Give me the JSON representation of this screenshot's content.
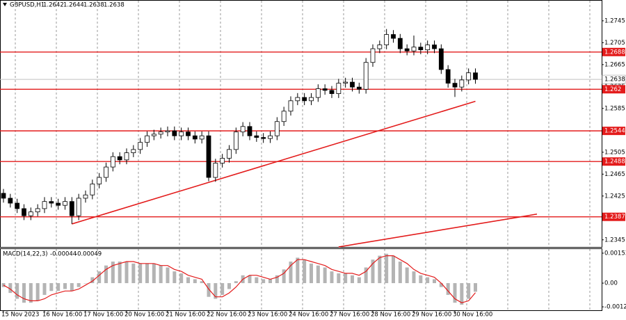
{
  "chart_data": [
    {
      "type": "candlestick",
      "symbol": "GBPUSD,H1",
      "header_ohlc": [
        1.2642,
        1.2644,
        1.2638,
        1.2638
      ],
      "categories": [
        "15 Nov 2023",
        null,
        null,
        null,
        null,
        null,
        "16 Nov 16:00",
        null,
        null,
        null,
        null,
        null,
        "17 Nov 16:00",
        null,
        null,
        null,
        null,
        null,
        "20 Nov 16:00",
        null,
        null,
        null,
        null,
        null,
        "21 Nov 16:00",
        null,
        null,
        null,
        null,
        null,
        "22 Nov 16:00",
        null,
        null,
        null,
        null,
        null,
        "23 Nov 16:00",
        null,
        null,
        null,
        null,
        null,
        "24 Nov 16:00",
        null,
        null,
        null,
        null,
        null,
        "27 Nov 16:00",
        null,
        null,
        null,
        null,
        null,
        "28 Nov 16:00",
        null,
        null,
        null,
        null,
        null,
        "29 Nov 16:00",
        null,
        null,
        null,
        null,
        null,
        "30 Nov 16:00",
        null,
        null,
        null
      ],
      "open": [
        1.243,
        1.2421,
        1.2412,
        1.2402,
        1.2389,
        1.2396,
        1.2402,
        1.2415,
        1.2412,
        1.2408,
        1.2415,
        1.2389,
        1.2421,
        1.2427,
        1.2447,
        1.2459,
        1.2478,
        1.2497,
        1.2491,
        1.2504,
        1.251,
        1.2523,
        1.2535,
        1.2538,
        1.2542,
        1.2544,
        1.2535,
        1.2542,
        1.2535,
        1.2529,
        1.2535,
        1.2459,
        1.2485,
        1.2494,
        1.251,
        1.2542,
        1.2552,
        1.2535,
        1.2532,
        1.253,
        1.2535,
        1.2561,
        1.258,
        1.2599,
        1.2605,
        1.2599,
        1.2605,
        1.2621,
        1.2618,
        1.2612,
        1.2631,
        1.2633,
        1.2624,
        1.262,
        1.2669,
        1.2694,
        1.2701,
        1.272,
        1.2713,
        1.2694,
        1.269,
        1.2697,
        1.2692,
        1.2701,
        1.2694,
        1.2656,
        1.2631,
        1.2624,
        1.2637,
        1.265
      ],
      "high": [
        1.2438,
        1.2429,
        1.242,
        1.241,
        1.2404,
        1.241,
        1.2423,
        1.2423,
        1.242,
        1.2423,
        1.2423,
        1.2429,
        1.2435,
        1.2455,
        1.2467,
        1.2486,
        1.2505,
        1.2505,
        1.2512,
        1.2518,
        1.2531,
        1.2543,
        1.2546,
        1.255,
        1.2552,
        1.2552,
        1.255,
        1.255,
        1.2543,
        1.2543,
        1.2543,
        1.2493,
        1.2502,
        1.2518,
        1.255,
        1.256,
        1.256,
        1.2543,
        1.254,
        1.2543,
        1.2569,
        1.2588,
        1.2607,
        1.2613,
        1.2613,
        1.2613,
        1.2629,
        1.2629,
        1.2626,
        1.2639,
        1.2641,
        1.2641,
        1.2632,
        1.2677,
        1.2702,
        1.2709,
        1.273,
        1.2728,
        1.2721,
        1.2702,
        1.2718,
        1.2705,
        1.2709,
        1.2709,
        1.2702,
        1.2664,
        1.2639,
        1.2645,
        1.2658,
        1.2658
      ],
      "low": [
        1.2413,
        1.2404,
        1.2394,
        1.2381,
        1.2381,
        1.2388,
        1.2394,
        1.2404,
        1.24,
        1.24,
        1.2374,
        1.2381,
        1.2413,
        1.2419,
        1.2439,
        1.2451,
        1.247,
        1.2483,
        1.2483,
        1.2496,
        1.2502,
        1.2515,
        1.2527,
        1.253,
        1.2534,
        1.2527,
        1.2527,
        1.2527,
        1.2521,
        1.2521,
        1.2452,
        1.2451,
        1.2477,
        1.2486,
        1.2502,
        1.2534,
        1.2527,
        1.2524,
        1.2522,
        1.2522,
        1.2527,
        1.2553,
        1.2572,
        1.2591,
        1.2591,
        1.2591,
        1.2597,
        1.261,
        1.2604,
        1.2604,
        1.2623,
        1.2616,
        1.2612,
        1.2612,
        1.2661,
        1.2686,
        1.2693,
        1.2705,
        1.2686,
        1.2682,
        1.2682,
        1.2684,
        1.2684,
        1.2686,
        1.2648,
        1.2623,
        1.2606,
        1.2616,
        1.2629,
        1.263
      ],
      "close": [
        1.2421,
        1.2412,
        1.2402,
        1.2389,
        1.2396,
        1.2402,
        1.2415,
        1.2412,
        1.2408,
        1.2415,
        1.2389,
        1.2421,
        1.2427,
        1.2447,
        1.2459,
        1.2478,
        1.2497,
        1.2491,
        1.2504,
        1.251,
        1.2523,
        1.2535,
        1.2538,
        1.2542,
        1.2544,
        1.2535,
        1.2542,
        1.2535,
        1.2529,
        1.2535,
        1.2459,
        1.2485,
        1.2494,
        1.251,
        1.2542,
        1.2552,
        1.2535,
        1.2532,
        1.253,
        1.2535,
        1.2561,
        1.258,
        1.2599,
        1.2605,
        1.2599,
        1.2605,
        1.2621,
        1.2618,
        1.2612,
        1.2631,
        1.2633,
        1.2624,
        1.262,
        1.2669,
        1.2694,
        1.2701,
        1.272,
        1.2713,
        1.2694,
        1.269,
        1.2697,
        1.2692,
        1.2701,
        1.2694,
        1.2656,
        1.2631,
        1.2624,
        1.2637,
        1.265,
        1.2638
      ],
      "ylim": [
        1.2332,
        1.2783
      ],
      "yticks": [
        1.2745,
        1.2705,
        1.2665,
        1.2625,
        1.2585,
        1.2505,
        1.2465,
        1.2425,
        1.2345
      ],
      "levels": [
        1.2688,
        1.262,
        1.2544,
        1.2488,
        1.2387
      ],
      "level_color": "#e31b1b",
      "current_price": 1.2638,
      "trendlines": [
        {
          "x": [
            10,
            69
          ],
          "y": [
            1.2374,
            1.2598
          ]
        },
        {
          "x": [
            49,
            78
          ],
          "y": [
            1.233,
            1.2392
          ]
        }
      ],
      "grid": true
    },
    {
      "type": "bar",
      "title": "MACD(14,22,3)",
      "header_values": [
        -0.00044,
        -0.00049
      ],
      "values": [
        -0.0002,
        -0.0005,
        -0.0008,
        -0.001,
        -0.001,
        -0.0009,
        -0.0006,
        -0.0004,
        -0.0004,
        -0.0003,
        -0.0004,
        -0.0002,
        0.0,
        0.0003,
        0.0006,
        0.0009,
        0.0011,
        0.0011,
        0.0011,
        0.001,
        0.001,
        0.001,
        0.001,
        0.0009,
        0.0008,
        0.0006,
        0.0005,
        0.0003,
        0.0002,
        0.0001,
        -0.0007,
        -0.0008,
        -0.0006,
        -0.0003,
        0.0001,
        0.0004,
        0.0004,
        0.0003,
        0.0002,
        0.0002,
        0.0004,
        0.0007,
        0.0011,
        0.0013,
        0.0012,
        0.001,
        0.0009,
        0.0008,
        0.0006,
        0.0005,
        0.0005,
        0.0004,
        0.0003,
        0.0008,
        0.0012,
        0.0014,
        0.0015,
        0.0014,
        0.0011,
        0.0008,
        0.0006,
        0.0004,
        0.0003,
        0.0002,
        -0.0002,
        -0.0006,
        -0.001,
        -0.0011,
        -0.0008,
        -0.00044
      ],
      "signal": [
        -0.0001,
        -0.0003,
        -0.0006,
        -0.0008,
        -0.0009,
        -0.0009,
        -0.0008,
        -0.0006,
        -0.0005,
        -0.0004,
        -0.0004,
        -0.0003,
        -0.0001,
        0.0001,
        0.0004,
        0.0007,
        0.0009,
        0.001,
        0.0011,
        0.0011,
        0.001,
        0.001,
        0.001,
        0.0009,
        0.0009,
        0.0007,
        0.0006,
        0.0004,
        0.0003,
        0.0002,
        -0.0003,
        -0.0007,
        -0.0007,
        -0.0005,
        -0.0002,
        0.0002,
        0.0004,
        0.0004,
        0.0003,
        0.0002,
        0.0003,
        0.0005,
        0.0009,
        0.0012,
        0.0012,
        0.0011,
        0.001,
        0.0009,
        0.0007,
        0.0006,
        0.0005,
        0.0005,
        0.0004,
        0.0006,
        0.001,
        0.0013,
        0.0014,
        0.0014,
        0.0012,
        0.001,
        0.0007,
        0.0005,
        0.0004,
        0.0003,
        0.0,
        -0.0004,
        -0.0008,
        -0.001,
        -0.0009,
        -0.00049
      ],
      "color": "#b4b4b4",
      "signal_color": "#e31b1b",
      "ylim": [
        -0.00142,
        0.00174
      ],
      "yticks": [
        0.00153,
        {
          "value": 0,
          "label": "0.00"
        },
        -0.00121
      ]
    }
  ]
}
